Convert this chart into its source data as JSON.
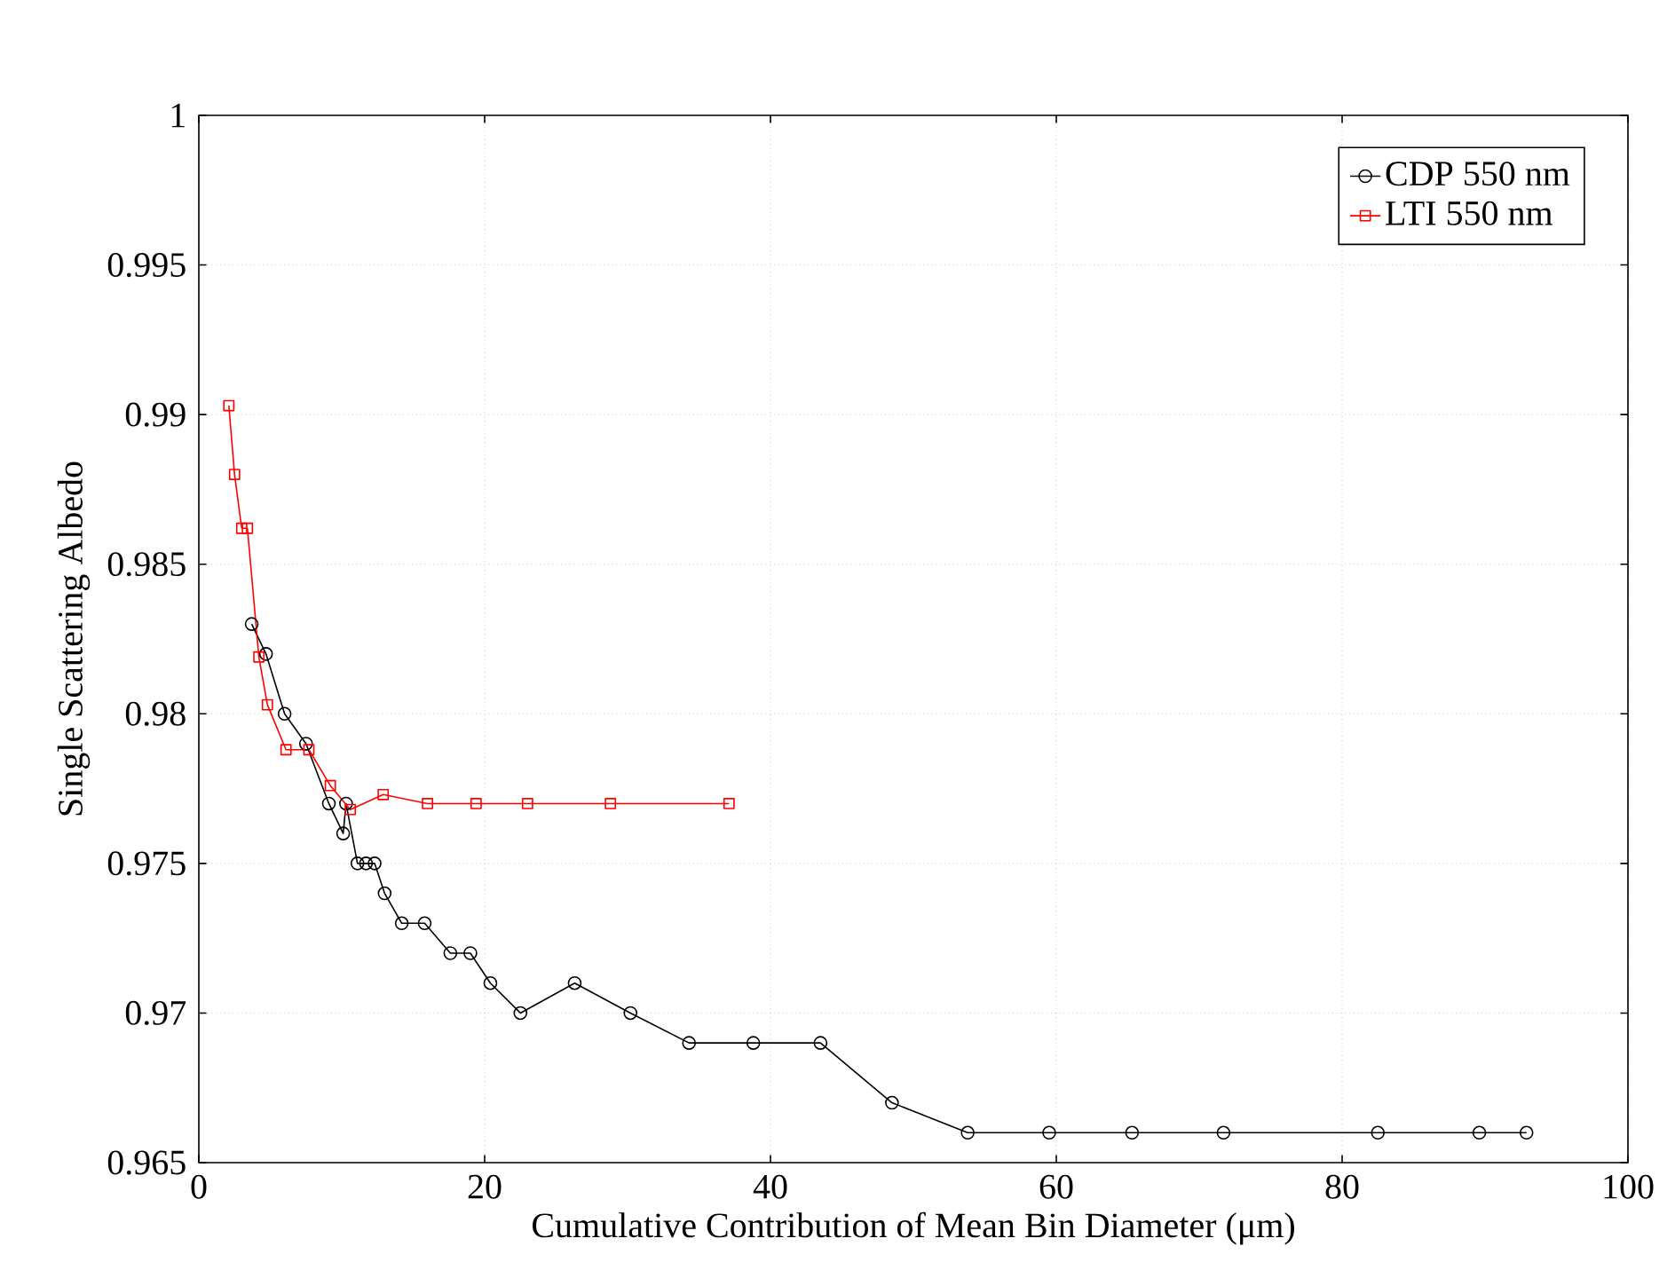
{
  "chart_data": {
    "type": "line",
    "xlabel": "Cumulative Contribution of Mean Bin Diameter (μm)",
    "ylabel": "Single Scattering Albedo",
    "xlim": [
      0,
      100
    ],
    "ylim": [
      0.965,
      1
    ],
    "xticks": [
      0,
      20,
      40,
      60,
      80,
      100
    ],
    "yticks": [
      0.965,
      0.97,
      0.975,
      0.98,
      0.985,
      0.99,
      0.995,
      1
    ],
    "grid": true,
    "legend": "top right",
    "line_style": "solid",
    "series": [
      {
        "name": "CDP 550 nm",
        "color": "#000000",
        "marker": "circle",
        "x": [
          3.7,
          4.7,
          6.0,
          7.5,
          9.1,
          10.1,
          10.3,
          11.1,
          11.7,
          12.3,
          13.0,
          14.2,
          15.8,
          17.6,
          19.0,
          20.4,
          22.5,
          26.3,
          30.2,
          34.3,
          38.8,
          43.5,
          48.5,
          53.8,
          59.5,
          65.3,
          71.7,
          82.5,
          89.6,
          92.9
        ],
        "values": [
          0.983,
          0.982,
          0.98,
          0.979,
          0.977,
          0.976,
          0.977,
          0.975,
          0.975,
          0.975,
          0.974,
          0.973,
          0.973,
          0.972,
          0.972,
          0.971,
          0.97,
          0.971,
          0.97,
          0.969,
          0.969,
          0.969,
          0.967,
          0.966,
          0.966,
          0.966,
          0.966,
          0.966,
          0.966,
          0.966
        ]
      },
      {
        "name": "LTI 550 nm",
        "color": "#ff0000",
        "marker": "square",
        "x": [
          2.1,
          2.5,
          3.0,
          3.4,
          4.2,
          4.8,
          6.1,
          7.7,
          9.2,
          10.6,
          12.9,
          16.0,
          19.4,
          23.0,
          28.8,
          37.1
        ],
        "values": [
          0.9903,
          0.988,
          0.9862,
          0.9862,
          0.9819,
          0.9803,
          0.9788,
          0.9788,
          0.9776,
          0.9768,
          0.9773,
          0.977,
          0.977,
          0.977,
          0.977,
          0.977
        ]
      }
    ]
  }
}
